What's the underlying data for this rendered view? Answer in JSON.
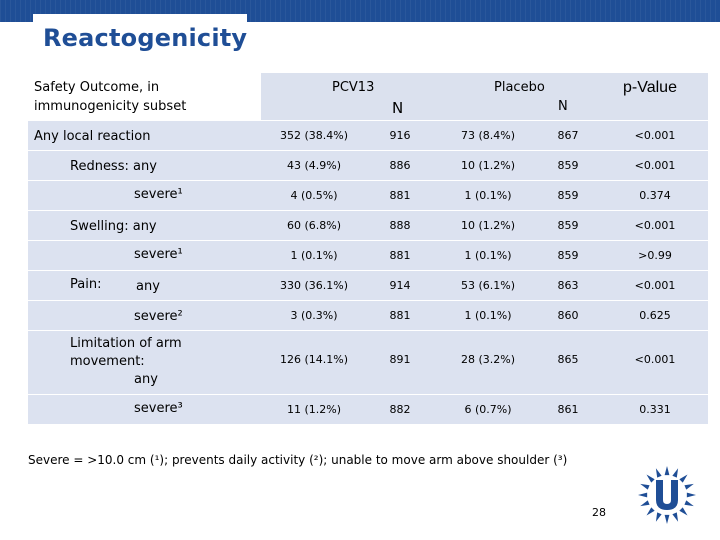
{
  "slide": {
    "title": "Reactogenicity",
    "page_number": "28",
    "footnote": "Severe = >10.0 cm (¹); prevents daily activity (²); unable to move arm above shoulder (³)"
  },
  "table": {
    "header": {
      "outcome_line1": "Safety Outcome, in",
      "outcome_line2": "immunogenicity subset",
      "pcv13": "PCV13",
      "placebo": "Placebo",
      "n_pcv13": "N",
      "n_placebo": "N",
      "pvalue": "p-Value"
    },
    "rows": [
      {
        "label": "Any local reaction",
        "pcv13": "352 (38.4%)",
        "n1": "916",
        "placebo": "73 (8.4%)",
        "n2": "867",
        "p": "<0.001"
      },
      {
        "label": "Redness: any",
        "pcv13": "43 (4.9%)",
        "n1": "886",
        "placebo": "10 (1.2%)",
        "n2": "859",
        "p": "<0.001"
      },
      {
        "label": "severe¹",
        "pcv13": "4 (0.5%)",
        "n1": "881",
        "placebo": "1 (0.1%)",
        "n2": "859",
        "p": "0.374"
      },
      {
        "label": "Swelling: any",
        "pcv13": "60 (6.8%)",
        "n1": "888",
        "placebo": "10 (1.2%)",
        "n2": "859",
        "p": "<0.001"
      },
      {
        "label": "severe¹",
        "pcv13": "1 (0.1%)",
        "n1": "881",
        "placebo": "1 (0.1%)",
        "n2": "859",
        "p": ">0.99"
      },
      {
        "label_main": "Pain:",
        "label": "any",
        "pcv13": "330 (36.1%)",
        "n1": "914",
        "placebo": "53 (6.1%)",
        "n2": "863",
        "p": "<0.001"
      },
      {
        "label": "severe²",
        "pcv13": "3 (0.3%)",
        "n1": "881",
        "placebo": "1 (0.1%)",
        "n2": "860",
        "p": "0.625"
      },
      {
        "label_line1": "Limitation of arm",
        "label_line2": "movement:",
        "label_line3": "any",
        "pcv13": "126 (14.1%)",
        "n1": "891",
        "placebo": "28 (3.2%)",
        "n2": "865",
        "p": "<0.001"
      },
      {
        "label": "severe³",
        "pcv13": "11 (1.2%)",
        "n1": "882",
        "placebo": "6 (0.7%)",
        "n2": "861",
        "p": "0.331"
      }
    ]
  },
  "colors": {
    "brand": "#1f4e96",
    "band": "#dce2f0"
  },
  "icons": {
    "logo": "utrecht-university-sun-logo-icon"
  }
}
